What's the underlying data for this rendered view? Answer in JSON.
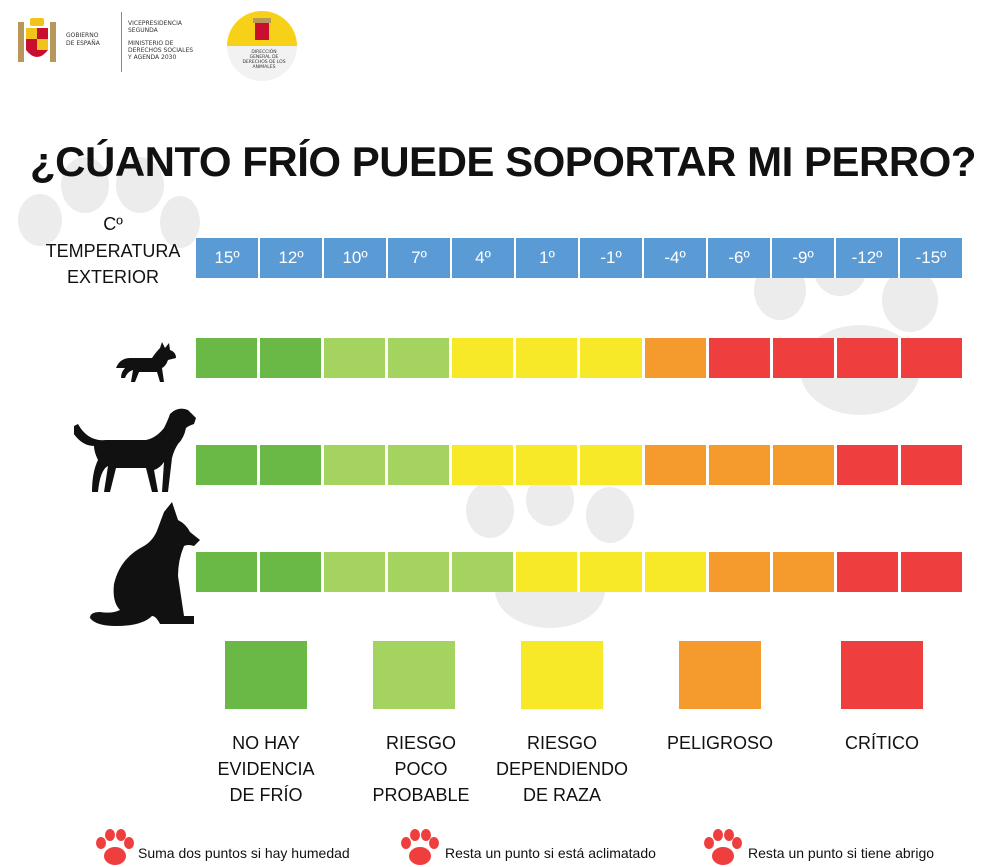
{
  "colors": {
    "no_risk": "#6ab845",
    "low_risk": "#a5d35f",
    "breed_risk": "#f7e928",
    "dangerous": "#f59a2c",
    "critical": "#ee3e3e",
    "temp_bar": "#5b9bd5",
    "paw_footnote": "#ee3e3e",
    "paw_background": "#ececec"
  },
  "header": {
    "gov_line1": "GOBIERNO",
    "gov_line2": "DE ESPAÑA",
    "ministry_line1": "VICEPRESIDENCIA",
    "ministry_line2": "SEGUNDA",
    "ministry_line3": "MINISTERIO DE",
    "ministry_line4": "DERECHOS SOCIALES",
    "ministry_line5": "Y AGENDA 2030",
    "badge_line1": "DIRECCIÓN",
    "badge_line2": "GENERAL DE",
    "badge_line3": "DERECHOS DE LOS",
    "badge_line4": "ANIMALES"
  },
  "title": "¿CÚANTO FRÍO PUEDE SOPORTAR MI PERRO?",
  "temp_label": {
    "unit": "Cº",
    "line1": "TEMPERATURA",
    "line2": "EXTERIOR"
  },
  "temperatures": [
    "15º",
    "12º",
    "10º",
    "7º",
    "4º",
    "1º",
    "-1º",
    "-4º",
    "-6º",
    "-9º",
    "-12º",
    "-15º"
  ],
  "dogs": [
    {
      "icon": "small-dog-icon",
      "risk": [
        0,
        0,
        1,
        1,
        2,
        2,
        2,
        3,
        4,
        4,
        4,
        4
      ]
    },
    {
      "icon": "medium-dog-icon",
      "risk": [
        0,
        0,
        1,
        1,
        2,
        2,
        2,
        3,
        3,
        3,
        4,
        4
      ]
    },
    {
      "icon": "large-dog-icon",
      "risk": [
        0,
        0,
        1,
        1,
        1,
        2,
        2,
        2,
        3,
        3,
        4,
        4
      ]
    }
  ],
  "legend": [
    {
      "line1": "NO HAY",
      "line2": "EVIDENCIA",
      "line3": "DE FRÍO",
      "color": "#6ab845"
    },
    {
      "line1": "RIESGO",
      "line2": "POCO",
      "line3": "PROBABLE",
      "color": "#a5d35f"
    },
    {
      "line1": "RIESGO",
      "line2": "DEPENDIENDO",
      "line3": "DE RAZA",
      "color": "#f7e928"
    },
    {
      "line1": "PELIGROSO",
      "line2": "",
      "line3": "",
      "color": "#f59a2c"
    },
    {
      "line1": "CRÍTICO",
      "line2": "",
      "line3": "",
      "color": "#ee3e3e"
    }
  ],
  "footnotes": [
    {
      "text": "Suma dos puntos si hay humedad",
      "icon": "paw-icon"
    },
    {
      "text": "Resta un punto si está aclimatado",
      "icon": "paw-icon"
    },
    {
      "text": "Resta un punto si tiene abrigo",
      "icon": "paw-icon"
    }
  ]
}
